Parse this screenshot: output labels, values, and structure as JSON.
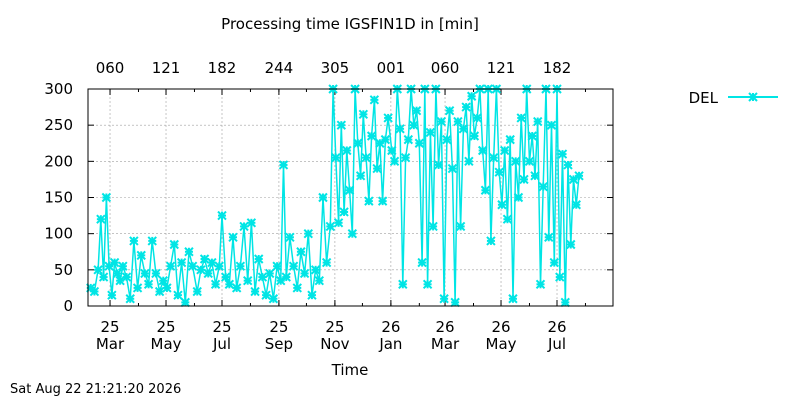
{
  "chart_data": {
    "type": "line",
    "title": "Processing time IGSFIN1D in [min]",
    "xlabel": "Time",
    "ylabel": "",
    "ylim": [
      0,
      300
    ],
    "yticks": [
      0,
      50,
      100,
      150,
      200,
      250,
      300
    ],
    "grid": true,
    "legend_position": "top-right",
    "bottom_ticks": [
      {
        "top": "25",
        "bottom": "Mar"
      },
      {
        "top": "25",
        "bottom": "May"
      },
      {
        "top": "25",
        "bottom": "Jul"
      },
      {
        "top": "25",
        "bottom": "Sep"
      },
      {
        "top": "25",
        "bottom": "Nov"
      },
      {
        "top": "26",
        "bottom": "Jan"
      },
      {
        "top": "26",
        "bottom": "Mar"
      },
      {
        "top": "26",
        "bottom": "May"
      },
      {
        "top": "26",
        "bottom": "Jul"
      }
    ],
    "top_ticks": [
      "060",
      "121",
      "182",
      "244",
      "305",
      "001",
      "060",
      "121",
      "182"
    ],
    "x_start": "2025-02-05",
    "x_end": "2026-08-31",
    "series": [
      {
        "name": "DEL",
        "color": "#00e5e5",
        "points": [
          [
            "2025-02-08",
            25
          ],
          [
            "2025-02-12",
            20
          ],
          [
            "2025-02-16",
            50
          ],
          [
            "2025-02-19",
            120
          ],
          [
            "2025-02-22",
            40
          ],
          [
            "2025-02-25",
            150
          ],
          [
            "2025-02-28",
            55
          ],
          [
            "2025-03-03",
            15
          ],
          [
            "2025-03-06",
            60
          ],
          [
            "2025-03-09",
            45
          ],
          [
            "2025-03-12",
            35
          ],
          [
            "2025-03-15",
            55
          ],
          [
            "2025-03-19",
            40
          ],
          [
            "2025-03-23",
            10
          ],
          [
            "2025-03-27",
            90
          ],
          [
            "2025-03-31",
            25
          ],
          [
            "2025-04-04",
            70
          ],
          [
            "2025-04-08",
            45
          ],
          [
            "2025-04-12",
            30
          ],
          [
            "2025-04-16",
            90
          ],
          [
            "2025-04-20",
            45
          ],
          [
            "2025-04-24",
            20
          ],
          [
            "2025-04-28",
            35
          ],
          [
            "2025-05-02",
            25
          ],
          [
            "2025-05-06",
            55
          ],
          [
            "2025-05-10",
            85
          ],
          [
            "2025-05-14",
            15
          ],
          [
            "2025-05-18",
            60
          ],
          [
            "2025-05-22",
            5
          ],
          [
            "2025-05-26",
            75
          ],
          [
            "2025-05-30",
            55
          ],
          [
            "2025-06-04",
            20
          ],
          [
            "2025-06-08",
            50
          ],
          [
            "2025-06-12",
            65
          ],
          [
            "2025-06-16",
            45
          ],
          [
            "2025-06-20",
            60
          ],
          [
            "2025-06-24",
            30
          ],
          [
            "2025-06-28",
            55
          ],
          [
            "2025-07-01",
            125
          ],
          [
            "2025-07-05",
            40
          ],
          [
            "2025-07-09",
            30
          ],
          [
            "2025-07-13",
            95
          ],
          [
            "2025-07-17",
            25
          ],
          [
            "2025-07-21",
            55
          ],
          [
            "2025-07-25",
            110
          ],
          [
            "2025-07-29",
            35
          ],
          [
            "2025-08-02",
            115
          ],
          [
            "2025-08-06",
            20
          ],
          [
            "2025-08-10",
            65
          ],
          [
            "2025-08-14",
            40
          ],
          [
            "2025-08-18",
            15
          ],
          [
            "2025-08-22",
            45
          ],
          [
            "2025-08-26",
            10
          ],
          [
            "2025-08-30",
            55
          ],
          [
            "2025-09-03",
            35
          ],
          [
            "2025-09-06",
            195
          ],
          [
            "2025-09-09",
            40
          ],
          [
            "2025-09-13",
            95
          ],
          [
            "2025-09-17",
            55
          ],
          [
            "2025-09-21",
            25
          ],
          [
            "2025-09-25",
            75
          ],
          [
            "2025-09-29",
            45
          ],
          [
            "2025-10-03",
            100
          ],
          [
            "2025-10-07",
            15
          ],
          [
            "2025-10-11",
            50
          ],
          [
            "2025-10-15",
            35
          ],
          [
            "2025-10-19",
            150
          ],
          [
            "2025-10-23",
            60
          ],
          [
            "2025-10-27",
            110
          ],
          [
            "2025-10-30",
            300
          ],
          [
            "2025-11-02",
            205
          ],
          [
            "2025-11-05",
            115
          ],
          [
            "2025-11-08",
            250
          ],
          [
            "2025-11-11",
            130
          ],
          [
            "2025-11-14",
            215
          ],
          [
            "2025-11-17",
            160
          ],
          [
            "2025-11-20",
            100
          ],
          [
            "2025-11-23",
            300
          ],
          [
            "2025-11-26",
            225
          ],
          [
            "2025-11-29",
            180
          ],
          [
            "2025-12-02",
            265
          ],
          [
            "2025-12-05",
            205
          ],
          [
            "2025-12-08",
            145
          ],
          [
            "2025-12-11",
            235
          ],
          [
            "2025-12-14",
            285
          ],
          [
            "2025-12-17",
            190
          ],
          [
            "2025-12-20",
            225
          ],
          [
            "2025-12-23",
            145
          ],
          [
            "2025-12-26",
            230
          ],
          [
            "2025-12-29",
            260
          ],
          [
            "2026-01-02",
            215
          ],
          [
            "2026-01-05",
            200
          ],
          [
            "2026-01-08",
            300
          ],
          [
            "2026-01-11",
            245
          ],
          [
            "2026-01-14",
            30
          ],
          [
            "2026-01-17",
            205
          ],
          [
            "2026-01-20",
            230
          ],
          [
            "2026-01-23",
            300
          ],
          [
            "2026-01-26",
            250
          ],
          [
            "2026-01-29",
            270
          ],
          [
            "2026-02-01",
            225
          ],
          [
            "2026-02-04",
            60
          ],
          [
            "2026-02-07",
            300
          ],
          [
            "2026-02-10",
            30
          ],
          [
            "2026-02-13",
            240
          ],
          [
            "2026-02-16",
            110
          ],
          [
            "2026-02-19",
            300
          ],
          [
            "2026-02-22",
            195
          ],
          [
            "2026-02-25",
            255
          ],
          [
            "2026-02-28",
            10
          ],
          [
            "2026-03-03",
            230
          ],
          [
            "2026-03-06",
            270
          ],
          [
            "2026-03-09",
            190
          ],
          [
            "2026-03-12",
            5
          ],
          [
            "2026-03-15",
            255
          ],
          [
            "2026-03-18",
            110
          ],
          [
            "2026-03-21",
            245
          ],
          [
            "2026-03-24",
            275
          ],
          [
            "2026-03-27",
            200
          ],
          [
            "2026-03-30",
            290
          ],
          [
            "2026-04-02",
            235
          ],
          [
            "2026-04-05",
            260
          ],
          [
            "2026-04-08",
            300
          ],
          [
            "2026-04-11",
            215
          ],
          [
            "2026-04-14",
            160
          ],
          [
            "2026-04-17",
            300
          ],
          [
            "2026-04-20",
            90
          ],
          [
            "2026-04-23",
            205
          ],
          [
            "2026-04-26",
            300
          ],
          [
            "2026-04-29",
            185
          ],
          [
            "2026-05-02",
            140
          ],
          [
            "2026-05-05",
            215
          ],
          [
            "2026-05-08",
            120
          ],
          [
            "2026-05-11",
            230
          ],
          [
            "2026-05-14",
            10
          ],
          [
            "2026-05-17",
            200
          ],
          [
            "2026-05-20",
            150
          ],
          [
            "2026-05-23",
            260
          ],
          [
            "2026-05-26",
            175
          ],
          [
            "2026-05-29",
            300
          ],
          [
            "2026-06-01",
            200
          ],
          [
            "2026-06-04",
            235
          ],
          [
            "2026-06-07",
            180
          ],
          [
            "2026-06-10",
            255
          ],
          [
            "2026-06-13",
            30
          ],
          [
            "2026-06-16",
            165
          ],
          [
            "2026-06-19",
            300
          ],
          [
            "2026-06-22",
            95
          ],
          [
            "2026-06-25",
            250
          ],
          [
            "2026-06-28",
            60
          ],
          [
            "2026-07-01",
            300
          ],
          [
            "2026-07-04",
            40
          ],
          [
            "2026-07-07",
            210
          ],
          [
            "2026-07-10",
            5
          ],
          [
            "2026-07-13",
            195
          ],
          [
            "2026-07-16",
            85
          ],
          [
            "2026-07-19",
            175
          ],
          [
            "2026-07-22",
            140
          ],
          [
            "2026-07-25",
            180
          ]
        ]
      }
    ]
  },
  "legend": {
    "label": "DEL"
  },
  "timestamp": "Sat Aug 22 21:21:20 2026"
}
